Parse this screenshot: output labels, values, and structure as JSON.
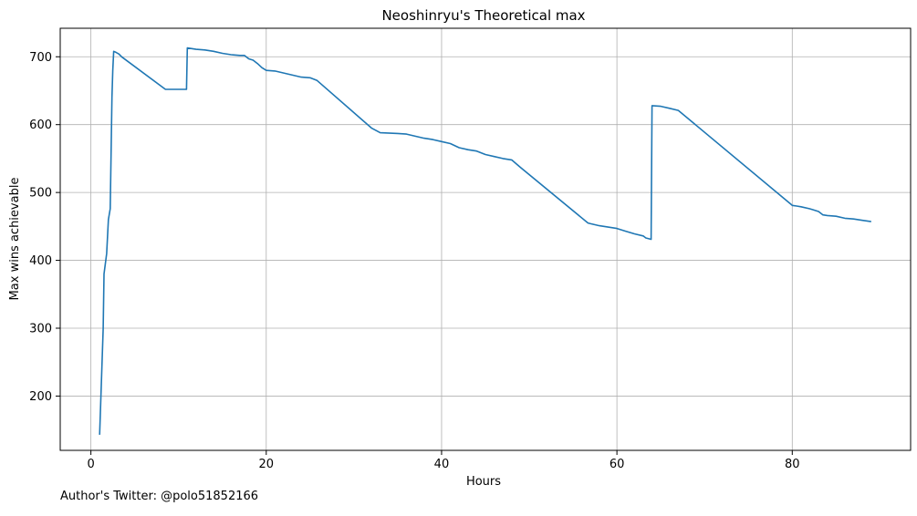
{
  "footer": {
    "author_note": "Author's Twitter: @polo51852166"
  },
  "chart_data": {
    "type": "line",
    "title": "Neoshinryu's Theoretical max",
    "xlabel": "Hours",
    "ylabel": "Max wins achievable",
    "xlim": [
      -3.5,
      93.5
    ],
    "ylim": [
      120,
      742
    ],
    "xticks": [
      0,
      20,
      40,
      60,
      80
    ],
    "yticks": [
      200,
      300,
      400,
      500,
      600,
      700
    ],
    "grid": true,
    "series": [
      {
        "color": "#1f77b4",
        "x": [
          1.0,
          1.4,
          1.5,
          1.8,
          2.0,
          2.2,
          2.4,
          2.5,
          2.6,
          2.8,
          3.2,
          3.5,
          8.5,
          9.0,
          10.0,
          10.9,
          11.0,
          12.0,
          13.0,
          14.0,
          15.0,
          16.0,
          17.0,
          17.5,
          18.0,
          18.5,
          19.0,
          19.5,
          20.0,
          21.0,
          22.0,
          23.0,
          24.0,
          25.0,
          25.8,
          32.0,
          33.0,
          35.0,
          36.0,
          37.0,
          38.0,
          39.0,
          40.0,
          41.0,
          42.0,
          43.0,
          44.0,
          45.0,
          46.0,
          47.0,
          48.0,
          49.0,
          56.7,
          57.0,
          58.0,
          59.0,
          60.0,
          61.0,
          62.0,
          63.0,
          63.3,
          63.9,
          64.0,
          65.0,
          66.0,
          67.0,
          80.0,
          80.5,
          81.0,
          82.0,
          83.0,
          83.5,
          84.0,
          85.0,
          86.0,
          87.0,
          88.0,
          89.0
        ],
        "values": [
          143,
          300,
          380,
          410,
          460,
          476,
          640,
          680,
          708,
          707,
          704,
          700,
          652,
          652,
          652,
          652,
          713,
          711,
          710,
          708,
          705,
          703,
          702,
          702,
          697,
          695,
          690,
          684,
          680,
          679,
          676,
          673,
          670,
          669,
          665,
          595,
          588,
          587,
          586,
          583,
          580,
          578,
          575,
          572,
          566,
          563,
          561,
          556,
          553,
          550,
          548,
          537,
          455,
          454,
          451,
          449,
          447,
          443,
          439,
          436,
          433,
          431,
          628,
          627,
          624,
          621,
          481,
          480,
          479,
          476,
          472,
          467,
          466,
          465,
          462,
          461,
          459,
          457
        ]
      }
    ]
  }
}
